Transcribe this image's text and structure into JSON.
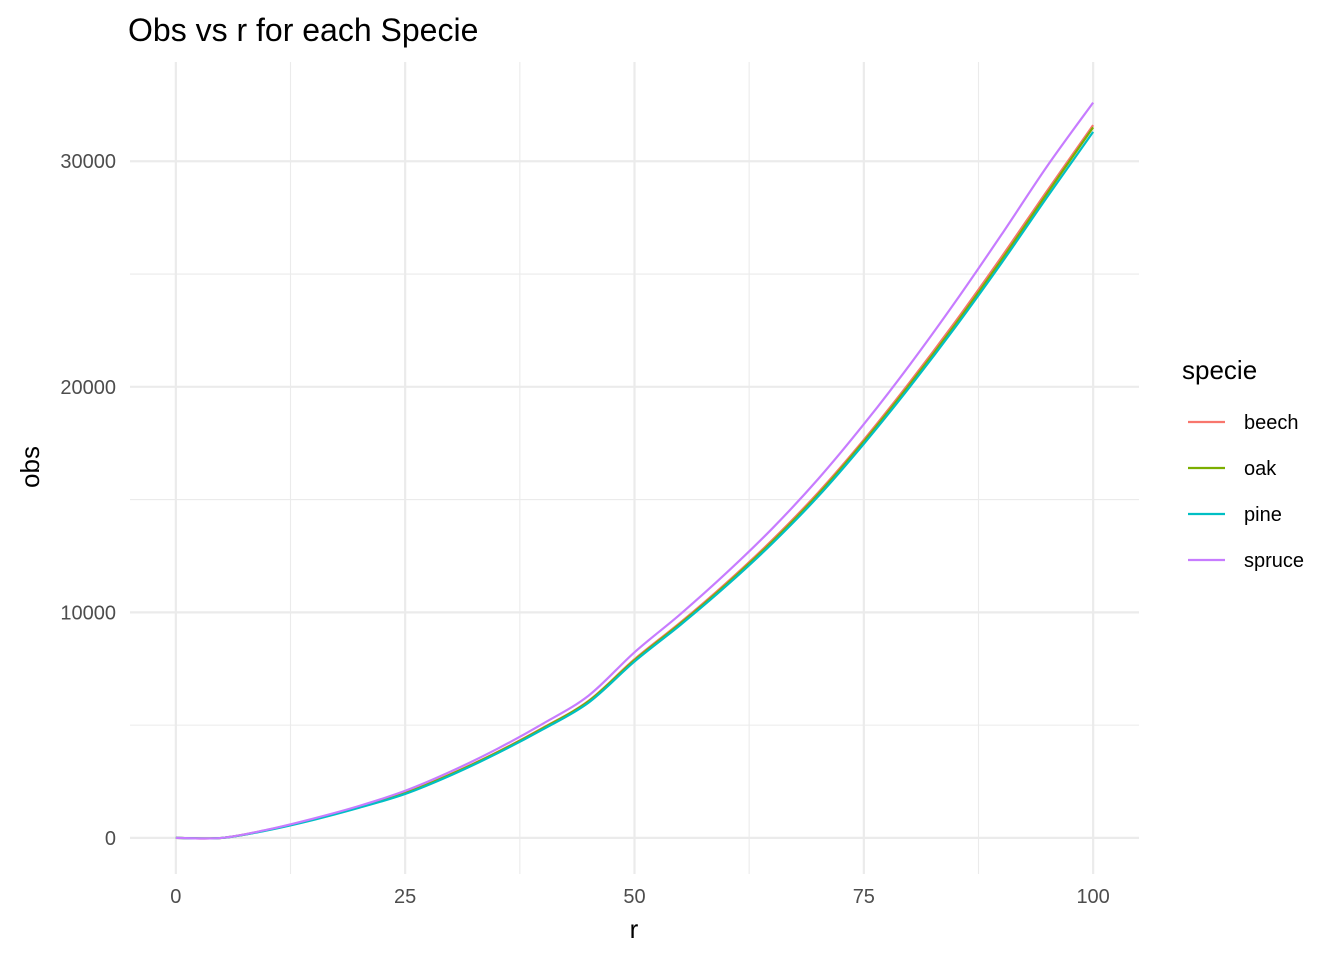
{
  "chart_data": {
    "type": "line",
    "title": "Obs vs r for each Specie",
    "xlabel": "r",
    "ylabel": "obs",
    "xlim": [
      -5,
      105
    ],
    "ylim": [
      -1600,
      34400
    ],
    "x_ticks": [
      0,
      25,
      50,
      75,
      100
    ],
    "x_tick_labels": [
      "0",
      "25",
      "50",
      "75",
      "100"
    ],
    "y_ticks": [
      0,
      10000,
      20000,
      30000
    ],
    "y_tick_labels": [
      "0",
      "10000",
      "20000",
      "30000"
    ],
    "grid": true,
    "legend": {
      "title": "specie",
      "position": "right"
    },
    "x": [
      0,
      5,
      10,
      15,
      20,
      25,
      30,
      35,
      40,
      45,
      50,
      55,
      60,
      65,
      70,
      75,
      80,
      85,
      90,
      95,
      100
    ],
    "series": [
      {
        "name": "beech",
        "color": "#F8766D",
        "values": [
          0,
          0,
          360,
          830,
          1370,
          2000,
          2840,
          3800,
          4880,
          6080,
          7920,
          9550,
          11300,
          13200,
          15300,
          17650,
          20200,
          22900,
          25750,
          28700,
          31600
        ]
      },
      {
        "name": "oak",
        "color": "#7CAE00",
        "values": [
          0,
          0,
          350,
          820,
          1360,
          1980,
          2820,
          3780,
          4860,
          6060,
          7880,
          9500,
          11240,
          13130,
          15220,
          17570,
          20100,
          22780,
          25620,
          28580,
          31500
        ]
      },
      {
        "name": "pine",
        "color": "#00BFC4",
        "values": [
          0,
          0,
          340,
          800,
          1340,
          1950,
          2780,
          3740,
          4810,
          6000,
          7820,
          9440,
          11170,
          13050,
          15130,
          17470,
          19990,
          22660,
          25480,
          28420,
          31300
        ]
      },
      {
        "name": "spruce",
        "color": "#C77CFF",
        "values": [
          0,
          0,
          370,
          860,
          1420,
          2090,
          2950,
          3940,
          5060,
          6310,
          8230,
          9920,
          11740,
          13710,
          15900,
          18340,
          20970,
          23780,
          26740,
          29790,
          32600
        ]
      }
    ]
  }
}
